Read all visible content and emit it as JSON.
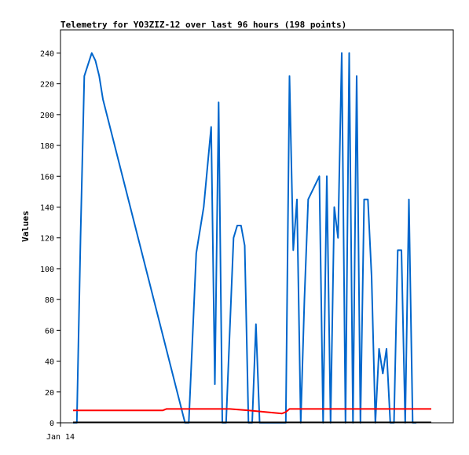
{
  "chart_data": {
    "type": "line",
    "title": "Telemetry for YO3ZIZ-12 over last 96 hours (198 points)",
    "xlabel": "",
    "ylabel": "Values",
    "x_tick_labels": [
      "Jan 14"
    ],
    "ylim": [
      0,
      255
    ],
    "y_ticks": [
      0,
      20,
      40,
      60,
      80,
      100,
      120,
      140,
      160,
      180,
      200,
      220,
      240
    ],
    "grid": false,
    "series": [
      {
        "color": "#0066cc",
        "x": [
          0,
          1,
          2,
          3,
          5,
          6,
          7,
          8,
          30,
          31,
          33,
          35,
          37,
          38,
          39,
          40,
          41,
          42,
          43,
          44,
          45,
          46,
          47,
          48,
          49,
          50,
          51,
          52,
          53,
          54,
          55,
          56,
          57,
          58,
          59,
          60,
          61,
          62,
          63,
          66,
          67,
          68,
          69,
          70,
          71,
          72,
          73,
          74,
          75,
          76,
          77,
          78,
          79,
          80,
          81,
          82,
          83,
          84,
          85,
          86,
          87,
          88,
          89,
          90,
          91,
          92
        ],
        "y": [
          0,
          0,
          120,
          225,
          240,
          235,
          225,
          210,
          0,
          0,
          110,
          140,
          192,
          25,
          208,
          0,
          0,
          60,
          120,
          128,
          128,
          115,
          0,
          0,
          64,
          0,
          0,
          0,
          0,
          0,
          0,
          0,
          0,
          225,
          112,
          145,
          0,
          80,
          145,
          160,
          0,
          160,
          0,
          140,
          120,
          240,
          0,
          240,
          0,
          225,
          0,
          145,
          145,
          95,
          0,
          48,
          32,
          48,
          0,
          0,
          112,
          112,
          0,
          145,
          0,
          0
        ]
      },
      {
        "color": "#ff0000",
        "x": [
          0,
          24,
          25,
          26,
          42,
          47,
          56,
          57,
          58,
          96
        ],
        "y": [
          8,
          8,
          9,
          9,
          9,
          8,
          6,
          7,
          9,
          9
        ]
      }
    ]
  }
}
